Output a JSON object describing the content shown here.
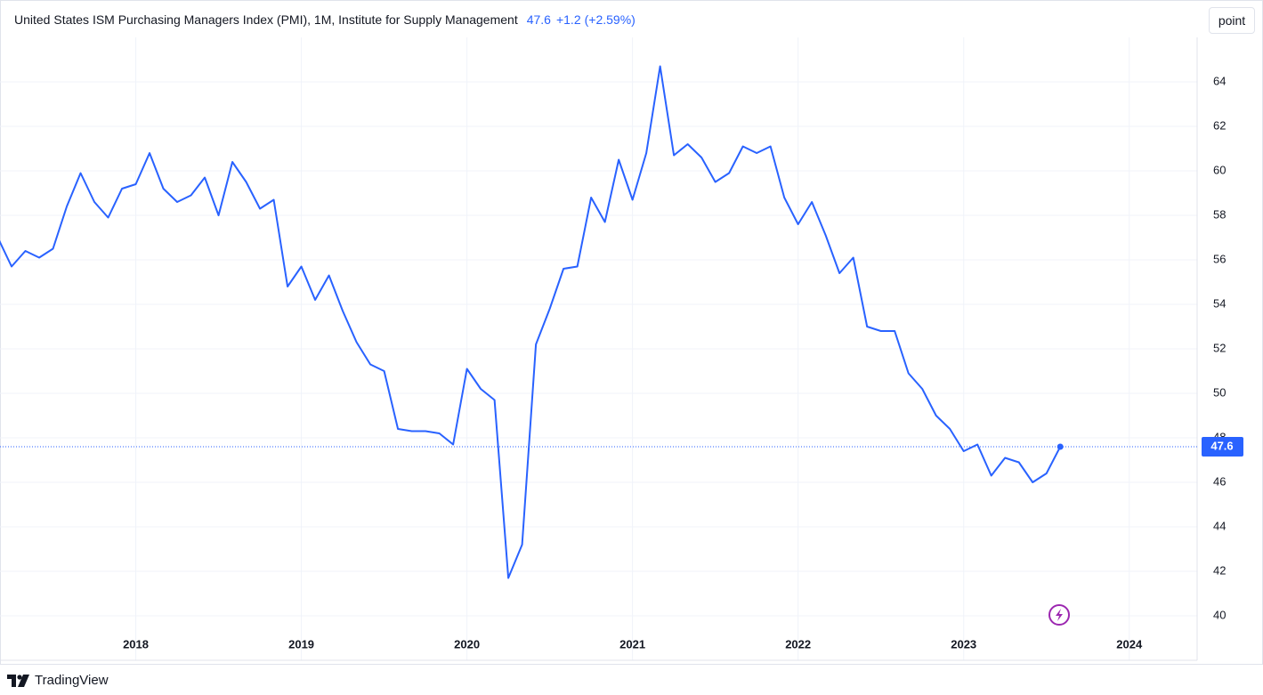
{
  "header": {
    "title": "United States ISM Purchasing Managers Index (PMI), 1M, Institute for Supply Management",
    "change": "+1.2",
    "change_percent": "(+2.59%)"
  },
  "button": "point",
  "footer": "TradingView",
  "chart_data": {
    "type": "line",
    "color": "#2962ff",
    "grid": true,
    "x": [
      2017.1667,
      2017.25,
      2017.3333,
      2017.4167,
      2017.5,
      2017.5833,
      2017.6667,
      2017.75,
      2017.8333,
      2017.9167,
      2018,
      2018.0833,
      2018.1667,
      2018.25,
      2018.3333,
      2018.4167,
      2018.5,
      2018.5833,
      2018.6667,
      2018.75,
      2018.8333,
      2018.9167,
      2019,
      2019.0833,
      2019.1667,
      2019.25,
      2019.3333,
      2019.4167,
      2019.5,
      2019.5833,
      2019.6667,
      2019.75,
      2019.8333,
      2019.9167,
      2020,
      2020.0833,
      2020.1667,
      2020.25,
      2020.3333,
      2020.4167,
      2020.5,
      2020.5833,
      2020.6667,
      2020.75,
      2020.8333,
      2020.9167,
      2021,
      2021.0833,
      2021.1667,
      2021.25,
      2021.3333,
      2021.4167,
      2021.5,
      2021.5833,
      2021.6667,
      2021.75,
      2021.8333,
      2021.9167,
      2022,
      2022.0833,
      2022.1667,
      2022.25,
      2022.3333,
      2022.4167,
      2022.5,
      2022.5833,
      2022.6667,
      2022.75,
      2022.8333,
      2022.9167,
      2023,
      2023.0833,
      2023.1667,
      2023.25,
      2023.3333,
      2023.4167,
      2023.5,
      2023.5833
    ],
    "values": [
      57.0,
      55.7,
      56.4,
      56.1,
      56.5,
      58.4,
      59.9,
      58.6,
      57.9,
      59.2,
      59.4,
      60.8,
      59.2,
      58.6,
      58.9,
      59.7,
      58.0,
      60.4,
      59.5,
      58.3,
      58.7,
      54.8,
      55.7,
      54.2,
      55.3,
      53.7,
      52.3,
      51.3,
      51.0,
      48.4,
      48.3,
      48.3,
      48.2,
      47.7,
      51.1,
      50.2,
      49.7,
      41.7,
      43.2,
      52.2,
      53.8,
      55.6,
      55.7,
      58.8,
      57.7,
      60.5,
      58.7,
      60.8,
      64.7,
      60.7,
      61.2,
      60.6,
      59.5,
      59.9,
      61.1,
      60.8,
      61.1,
      58.8,
      57.6,
      58.6,
      57.1,
      55.4,
      56.1,
      53.0,
      52.8,
      52.8,
      50.9,
      50.2,
      49.0,
      48.4,
      47.4,
      47.7,
      46.3,
      47.1,
      46.9,
      46.0,
      46.4,
      47.6
    ],
    "xlim": [
      2017.18,
      2024.41
    ],
    "xticks": [
      2018,
      2019,
      2020,
      2021,
      2022,
      2023,
      2024
    ],
    "ylim": [
      38,
      66
    ],
    "yticks": [
      40,
      42,
      44,
      46,
      48,
      50,
      52,
      54,
      56,
      58,
      60,
      62,
      64
    ]
  }
}
